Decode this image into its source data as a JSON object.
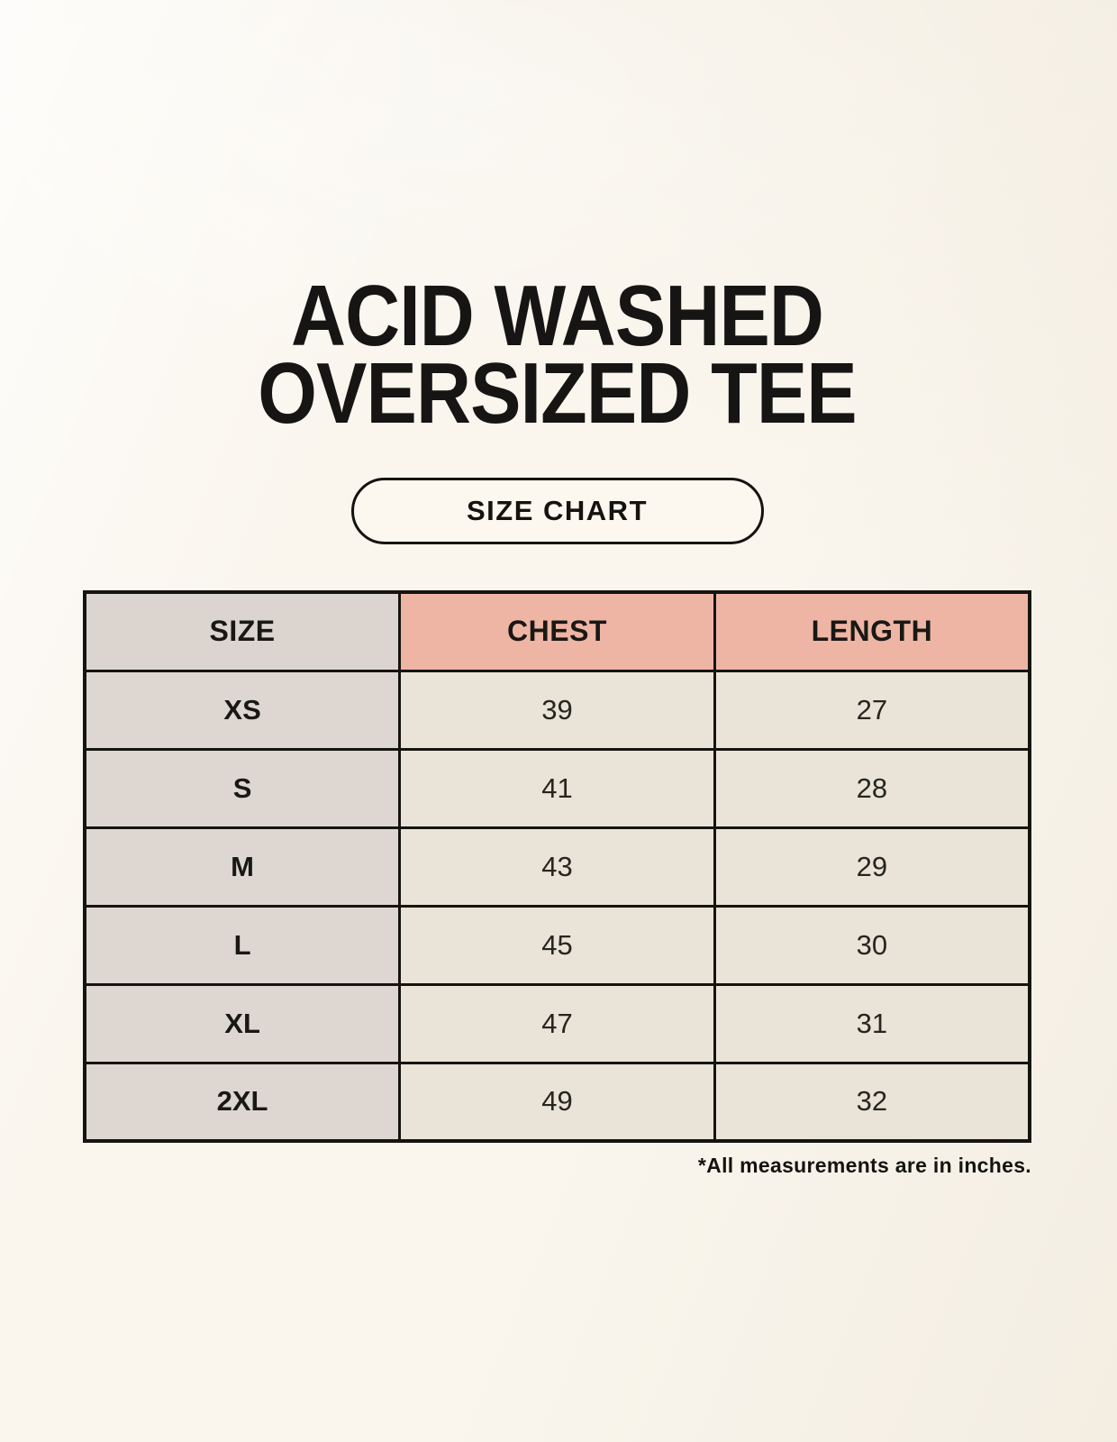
{
  "header": {
    "title_line1": "ACID WASHED",
    "title_line2": "OVERSIZED TEE",
    "badge_label": "SIZE CHART"
  },
  "footnote": "*All measurements are in inches.",
  "chart_data": {
    "type": "table",
    "title": "ACID WASHED OVERSIZED TEE",
    "subtitle": "SIZE CHART",
    "units": "inches",
    "columns": [
      "SIZE",
      "CHEST",
      "LENGTH"
    ],
    "rows": [
      {
        "size": "XS",
        "chest": 39,
        "length": 27
      },
      {
        "size": "S",
        "chest": 41,
        "length": 28
      },
      {
        "size": "M",
        "chest": 43,
        "length": 29
      },
      {
        "size": "L",
        "chest": 45,
        "length": 30
      },
      {
        "size": "XL",
        "chest": 47,
        "length": 31
      },
      {
        "size": "2XL",
        "chest": 49,
        "length": 32
      }
    ]
  },
  "colors": {
    "page_bg": "#FAF6EE",
    "header_size_bg": "#DCD5CF",
    "header_accent_bg": "#EFB5A4",
    "row_label_bg": "#DED7D1",
    "row_value_bg": "#E9E3D8",
    "table_border": "#15140F",
    "text": "#1B1A16"
  }
}
